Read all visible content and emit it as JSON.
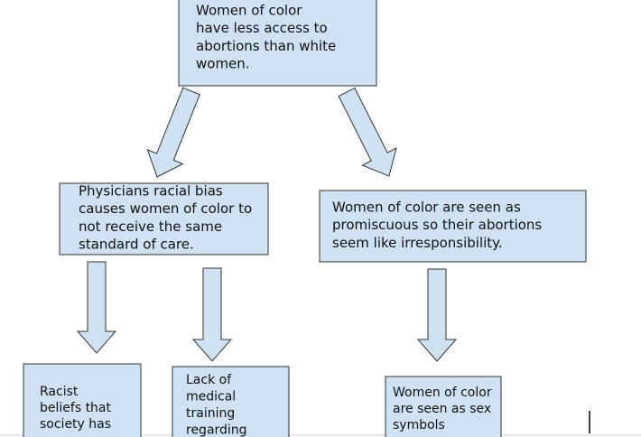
{
  "nodes": [
    {
      "lines": [
        "Women of color",
        "have less access to",
        "abortions than white",
        "women."
      ]
    },
    {
      "lines": [
        "Physicians racial bias",
        "causes women of color to",
        "not receive the same",
        "standard of care."
      ]
    },
    {
      "lines": [
        "Women of color are seen as",
        "promiscuous so their abortions",
        "seem like irresponsibility."
      ]
    },
    {
      "lines": [
        "Racist",
        "beliefs that",
        "society has"
      ]
    },
    {
      "lines": [
        "Lack of",
        "medical",
        "training",
        "regarding"
      ]
    },
    {
      "lines": [
        "Women of color",
        "are seen as sex",
        "symbols"
      ]
    }
  ]
}
